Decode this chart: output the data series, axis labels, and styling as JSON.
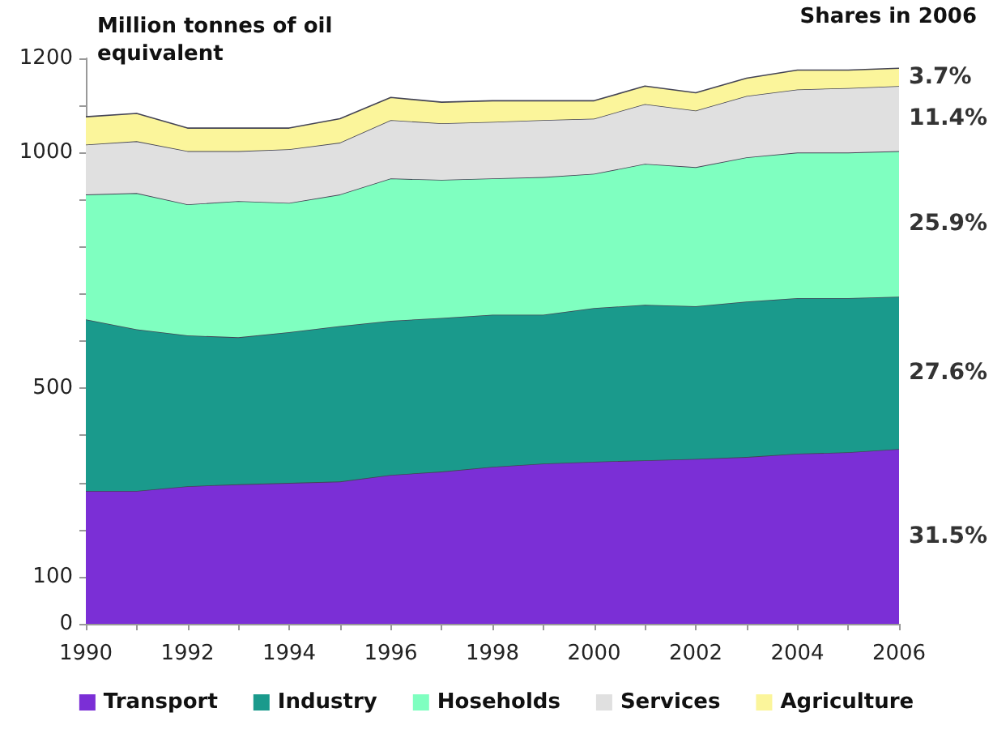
{
  "chart_data": {
    "type": "area",
    "stacked": true,
    "ylabel": "Million tonnes of oil equivalent",
    "annotations": [
      "Shares in 2006",
      "3.7%",
      "11.4%",
      "25.9%",
      "27.6%",
      "31.5%"
    ],
    "x": [
      1990,
      1991,
      1992,
      1993,
      1994,
      1995,
      1996,
      1997,
      1998,
      1999,
      2000,
      2001,
      2002,
      2003,
      2004,
      2005,
      2006
    ],
    "series": [
      {
        "name": "Transport",
        "color": "#7b2fd6",
        "values": [
          282,
          282,
          292,
          296,
          299,
          302,
          316,
          323,
          333,
          340,
          344,
          347,
          350,
          354,
          361,
          364,
          371
        ]
      },
      {
        "name": "Industry",
        "color": "#1a9a8c",
        "values": [
          364,
          343,
          320,
          312,
          320,
          330,
          327,
          326,
          323,
          316,
          326,
          330,
          324,
          330,
          330,
          327,
          323
        ]
      },
      {
        "name": "Hoseholds",
        "color": "#7fffc0",
        "values": [
          265,
          289,
          278,
          289,
          274,
          279,
          302,
          293,
          289,
          292,
          285,
          299,
          295,
          306,
          309,
          309,
          309
        ]
      },
      {
        "name": "Services",
        "color": "#e0e0e0",
        "values": [
          106,
          110,
          113,
          106,
          114,
          110,
          124,
          120,
          120,
          121,
          117,
          127,
          120,
          130,
          134,
          137,
          138
        ]
      },
      {
        "name": "Agriculture",
        "color": "#fbf59b",
        "values": [
          59,
          59,
          49,
          49,
          45,
          51,
          48,
          45,
          45,
          41,
          38,
          38,
          38,
          38,
          41,
          38,
          38
        ]
      }
    ],
    "xlim": [
      1990,
      2006
    ],
    "xticks": [
      1990,
      {
        "value": 1991,
        "label": null
      },
      1992,
      {
        "value": 1993,
        "label": null
      },
      1994,
      {
        "value": 1995,
        "label": null
      },
      1996,
      {
        "value": 1997,
        "label": null
      },
      1998,
      {
        "value": 1999,
        "label": null
      },
      2000,
      {
        "value": 2001,
        "label": null
      },
      2002,
      {
        "value": 2003,
        "label": null
      },
      2004,
      {
        "value": 2005,
        "label": null
      },
      2006
    ],
    "ylim": [
      0,
      1200
    ],
    "yticks": [
      0,
      100,
      {
        "value": 200,
        "label": null
      },
      {
        "value": 300,
        "label": null
      },
      {
        "value": 400,
        "label": null
      },
      500,
      {
        "value": 600,
        "label": null
      },
      {
        "value": 700,
        "label": null
      },
      {
        "value": 800,
        "label": null
      },
      {
        "value": 900,
        "label": null
      },
      1000,
      {
        "value": 1100,
        "label": null
      },
      1200
    ],
    "grid": false,
    "legend": "bottom"
  }
}
